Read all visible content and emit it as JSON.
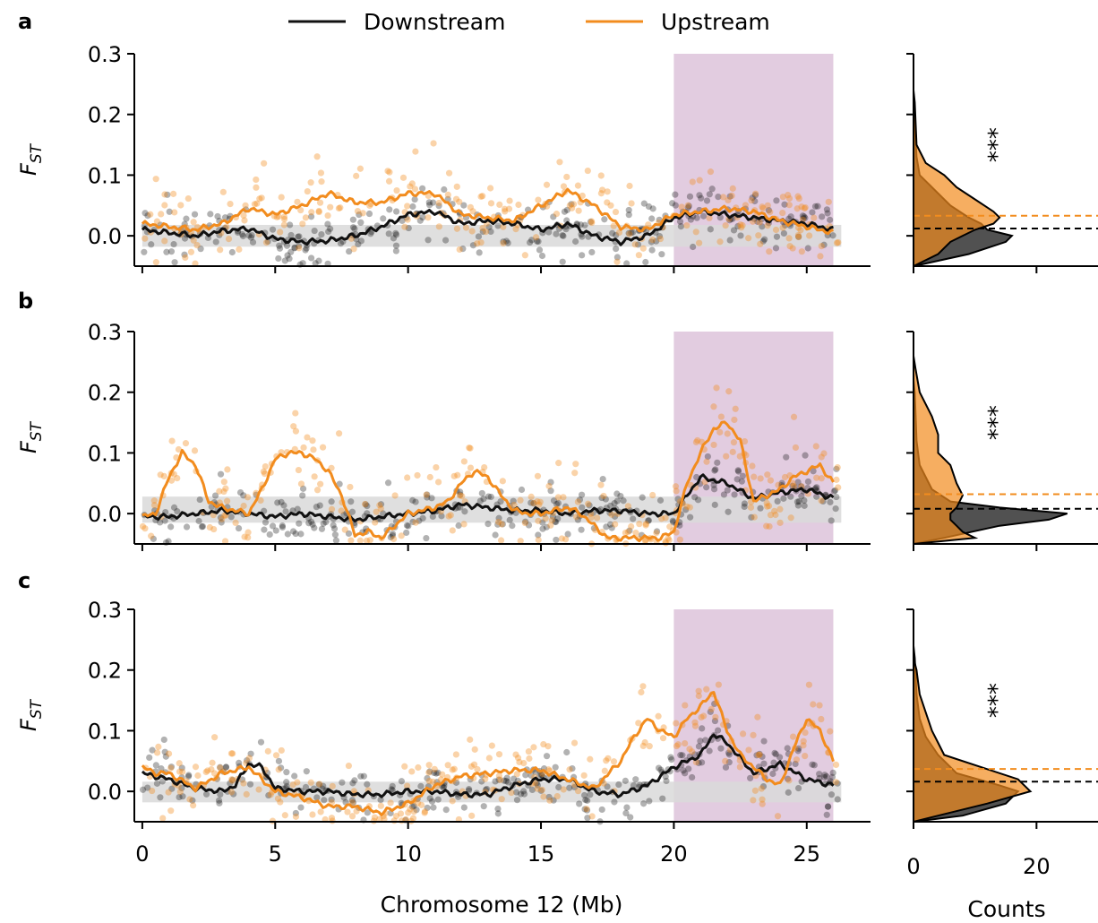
{
  "legend": {
    "placement": "top-center",
    "items": [
      {
        "label": "Downstream",
        "color": "#111111"
      },
      {
        "label": "Upstream",
        "color": "#f28c1e"
      }
    ]
  },
  "xlabel": "Chromosome 12 (Mb)",
  "hist_xlabel": "Counts",
  "colors": {
    "downstream": "#111111",
    "upstream": "#f28c1e",
    "highlight": "#e2cce0",
    "neutral_band": "#d9d9d9"
  },
  "chart_data": [
    {
      "type": "scatter",
      "panel_label": "a",
      "ylabel": "F",
      "ylabel_sub": "ST",
      "xlim": [
        -0.3,
        27.4
      ],
      "ylim": [
        -0.05,
        0.3
      ],
      "xticks": [
        0,
        5,
        10,
        15,
        20,
        25
      ],
      "yticks": [
        0.0,
        0.1,
        0.2,
        0.3
      ],
      "ytick_labels": [
        "0.0",
        "0.1",
        "0.2",
        "0.3"
      ],
      "highlight_region": [
        20,
        26
      ],
      "neutral_band": [
        -0.018,
        0.018
      ],
      "series": [
        {
          "key": "downstream",
          "x": [
            0,
            1,
            2,
            3,
            4,
            5,
            6,
            7,
            8,
            9,
            10,
            11,
            12,
            13,
            14,
            15,
            16,
            17,
            18,
            19,
            20,
            21,
            22,
            23,
            24,
            25,
            26
          ],
          "y": [
            0.01,
            0.005,
            0.0,
            0.008,
            0.012,
            -0.005,
            -0.01,
            -0.008,
            0.0,
            0.015,
            0.035,
            0.04,
            0.02,
            0.025,
            0.02,
            0.01,
            0.02,
            0.0,
            -0.01,
            0.0,
            0.03,
            0.04,
            0.035,
            0.03,
            0.025,
            0.02,
            0.01
          ]
        },
        {
          "key": "upstream",
          "x": [
            0,
            1,
            2,
            3,
            4,
            5,
            6,
            7,
            8,
            9,
            10,
            11,
            12,
            13,
            14,
            15,
            16,
            17,
            18,
            19,
            20,
            21,
            22,
            23,
            24,
            25,
            26
          ],
          "y": [
            0.02,
            0.015,
            0.01,
            0.02,
            0.045,
            0.035,
            0.05,
            0.07,
            0.055,
            0.055,
            0.07,
            0.07,
            0.035,
            0.03,
            0.025,
            0.05,
            0.075,
            0.05,
            0.015,
            0.01,
            0.035,
            0.04,
            0.045,
            0.04,
            0.025,
            0.015,
            0.005
          ]
        }
      ],
      "histogram": {
        "xlim": [
          0,
          30
        ],
        "xticks": [
          0,
          20
        ],
        "downstream_density": [
          [
            -0.05,
            0
          ],
          [
            -0.03,
            9
          ],
          [
            -0.01,
            15
          ],
          [
            0.0,
            16
          ],
          [
            0.01,
            12
          ],
          [
            0.02,
            11
          ],
          [
            0.03,
            9
          ],
          [
            0.05,
            6
          ],
          [
            0.08,
            3
          ],
          [
            0.1,
            1
          ],
          [
            0.13,
            0.5
          ],
          [
            0.18,
            0.2
          ],
          [
            0.2,
            0
          ]
        ],
        "upstream_density": [
          [
            -0.05,
            0
          ],
          [
            -0.03,
            4
          ],
          [
            -0.01,
            6
          ],
          [
            0.0,
            8
          ],
          [
            0.01,
            10
          ],
          [
            0.02,
            13
          ],
          [
            0.03,
            14
          ],
          [
            0.04,
            13
          ],
          [
            0.06,
            10
          ],
          [
            0.08,
            7
          ],
          [
            0.1,
            5
          ],
          [
            0.12,
            2
          ],
          [
            0.15,
            0.5
          ],
          [
            0.22,
            0.2
          ],
          [
            0.24,
            0
          ]
        ],
        "downstream_mean": 0.012,
        "upstream_mean": 0.033,
        "significance": "***"
      }
    },
    {
      "type": "scatter",
      "panel_label": "b",
      "ylabel": "F",
      "ylabel_sub": "ST",
      "xlim": [
        -0.3,
        27.4
      ],
      "ylim": [
        -0.05,
        0.3
      ],
      "xticks": [
        0,
        5,
        10,
        15,
        20,
        25
      ],
      "yticks": [
        0.0,
        0.1,
        0.2,
        0.3
      ],
      "ytick_labels": [
        "0.0",
        "0.1",
        "0.2",
        "0.3"
      ],
      "highlight_region": [
        20,
        26
      ],
      "neutral_band": [
        -0.015,
        0.028
      ],
      "series": [
        {
          "key": "downstream",
          "x": [
            0,
            1,
            2,
            3,
            4,
            5,
            6,
            7,
            8,
            9,
            10,
            11,
            12,
            13,
            14,
            15,
            16,
            17,
            18,
            19,
            20,
            21,
            22,
            23,
            24,
            25,
            26
          ],
          "y": [
            -0.005,
            -0.005,
            0.0,
            0.005,
            0.0,
            -0.005,
            0.0,
            -0.005,
            -0.01,
            -0.005,
            0.0,
            0.005,
            0.015,
            0.01,
            0.005,
            0.005,
            0.0,
            0.005,
            0.005,
            0.0,
            0.0,
            0.06,
            0.05,
            0.025,
            0.035,
            0.04,
            0.025
          ]
        },
        {
          "key": "upstream",
          "x": [
            0,
            0.5,
            1,
            1.5,
            2,
            2.5,
            3,
            3.5,
            4,
            4.5,
            5,
            5.5,
            6,
            6.5,
            7,
            7.5,
            8,
            8.5,
            9,
            9.5,
            10,
            10.5,
            11,
            11.5,
            12,
            12.5,
            13,
            13.5,
            14,
            14.5,
            15,
            15.5,
            16,
            16.5,
            17,
            17.5,
            18,
            18.5,
            19,
            19.5,
            20,
            20.5,
            21,
            21.5,
            22,
            22.5,
            23,
            23.5,
            24,
            24.5,
            25,
            25.5,
            26
          ],
          "y": [
            -0.005,
            0.0,
            0.06,
            0.1,
            0.08,
            0.02,
            0.01,
            0.005,
            0.0,
            0.04,
            0.09,
            0.1,
            0.1,
            0.09,
            0.07,
            0.03,
            -0.035,
            -0.03,
            -0.04,
            -0.02,
            0.0,
            0.005,
            0.01,
            0.02,
            0.05,
            0.07,
            0.06,
            0.03,
            0.005,
            0.0,
            0.0,
            0.005,
            0.01,
            0.0,
            -0.02,
            -0.04,
            -0.04,
            -0.04,
            -0.04,
            -0.04,
            -0.03,
            0.05,
            0.1,
            0.14,
            0.15,
            0.12,
            0.02,
            0.03,
            0.04,
            0.06,
            0.07,
            0.08,
            0.05
          ]
        }
      ],
      "histogram": {
        "xlim": [
          0,
          30
        ],
        "xticks": [
          0,
          20
        ],
        "downstream_density": [
          [
            -0.05,
            0
          ],
          [
            -0.04,
            5
          ],
          [
            -0.02,
            14
          ],
          [
            -0.01,
            22
          ],
          [
            0.0,
            25
          ],
          [
            0.01,
            14
          ],
          [
            0.02,
            6
          ],
          [
            0.04,
            3
          ],
          [
            0.06,
            2
          ],
          [
            0.08,
            1
          ],
          [
            0.12,
            0.5
          ],
          [
            0.2,
            0.2
          ],
          [
            0.22,
            0
          ]
        ],
        "upstream_density": [
          [
            -0.05,
            0
          ],
          [
            -0.04,
            10
          ],
          [
            -0.03,
            8
          ],
          [
            -0.02,
            7
          ],
          [
            -0.01,
            6
          ],
          [
            0.0,
            6
          ],
          [
            0.01,
            7
          ],
          [
            0.03,
            8
          ],
          [
            0.05,
            7
          ],
          [
            0.08,
            6
          ],
          [
            0.1,
            4
          ],
          [
            0.13,
            4
          ],
          [
            0.16,
            3
          ],
          [
            0.2,
            1
          ],
          [
            0.24,
            0.3
          ],
          [
            0.26,
            0
          ]
        ],
        "downstream_mean": 0.008,
        "upstream_mean": 0.032,
        "significance": "***"
      }
    },
    {
      "type": "scatter",
      "panel_label": "c",
      "ylabel": "F",
      "ylabel_sub": "ST",
      "xlim": [
        -0.3,
        27.4
      ],
      "ylim": [
        -0.05,
        0.3
      ],
      "xticks": [
        0,
        5,
        10,
        15,
        20,
        25
      ],
      "xtick_labels": [
        "0",
        "5",
        "10",
        "15",
        "20",
        "25"
      ],
      "yticks": [
        0.0,
        0.1,
        0.2,
        0.3
      ],
      "ytick_labels": [
        "0.0",
        "0.1",
        "0.2",
        "0.3"
      ],
      "highlight_region": [
        20,
        26
      ],
      "neutral_band": [
        -0.018,
        0.016
      ],
      "series": [
        {
          "key": "downstream",
          "x": [
            0,
            1,
            2,
            3,
            3.5,
            4,
            4.5,
            5,
            6,
            7,
            8,
            9,
            10,
            11,
            12,
            13,
            14,
            15,
            16,
            17,
            18,
            19,
            20,
            21,
            21.5,
            22,
            23,
            24,
            25,
            26
          ],
          "y": [
            0.03,
            0.02,
            0.005,
            0.0,
            0.01,
            0.045,
            0.04,
            0.005,
            0.0,
            0.0,
            -0.005,
            -0.005,
            0.0,
            0.0,
            -0.005,
            -0.005,
            0.01,
            0.02,
            0.02,
            0.0,
            -0.005,
            0.01,
            0.04,
            0.06,
            0.095,
            0.08,
            0.03,
            0.045,
            0.02,
            0.01
          ]
        },
        {
          "key": "upstream",
          "x": [
            0,
            0.5,
            1,
            2,
            3,
            4,
            5,
            6,
            7,
            8,
            9,
            10,
            11,
            12,
            13,
            14,
            15,
            16,
            17,
            18,
            18.5,
            19,
            19.5,
            20,
            20.5,
            21,
            21.5,
            22,
            22.5,
            23,
            23.5,
            24,
            24.5,
            25,
            25.5,
            26
          ],
          "y": [
            0.04,
            0.03,
            0.03,
            0.005,
            0.03,
            0.04,
            0.0,
            -0.01,
            -0.025,
            -0.025,
            -0.035,
            -0.02,
            0.01,
            0.025,
            0.03,
            0.035,
            0.035,
            0.02,
            0.005,
            0.05,
            0.09,
            0.12,
            0.1,
            0.09,
            0.12,
            0.14,
            0.165,
            0.1,
            0.06,
            0.04,
            0.02,
            0.01,
            0.07,
            0.12,
            0.1,
            0.05
          ]
        }
      ],
      "histogram": {
        "xlim": [
          0,
          30
        ],
        "xticks": [
          0,
          20
        ],
        "xtick_labels": [
          "0",
          "20"
        ],
        "downstream_density": [
          [
            -0.05,
            0
          ],
          [
            -0.04,
            8
          ],
          [
            -0.02,
            15
          ],
          [
            0.0,
            17
          ],
          [
            0.01,
            14
          ],
          [
            0.03,
            7
          ],
          [
            0.06,
            4
          ],
          [
            0.09,
            2
          ],
          [
            0.12,
            1
          ],
          [
            0.16,
            0.5
          ],
          [
            0.22,
            0.2
          ],
          [
            0.24,
            0
          ]
        ],
        "upstream_density": [
          [
            -0.05,
            0
          ],
          [
            -0.04,
            4
          ],
          [
            -0.02,
            12
          ],
          [
            0.0,
            19
          ],
          [
            0.02,
            17
          ],
          [
            0.04,
            11
          ],
          [
            0.06,
            5
          ],
          [
            0.08,
            4
          ],
          [
            0.1,
            3
          ],
          [
            0.13,
            2
          ],
          [
            0.16,
            1
          ],
          [
            0.2,
            0.5
          ],
          [
            0.22,
            0
          ]
        ],
        "downstream_mean": 0.016,
        "upstream_mean": 0.037,
        "significance": "***"
      }
    }
  ]
}
